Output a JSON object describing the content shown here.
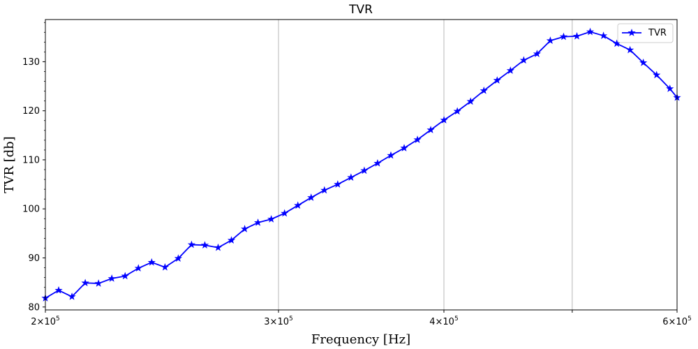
{
  "chart_data": {
    "type": "line",
    "title": "TVR",
    "xlabel": "Frequency [Hz]",
    "ylabel": "TVR [db]",
    "xscale": "log",
    "xlim": [
      200000,
      600000
    ],
    "ylim": [
      79.4,
      138.6
    ],
    "grid": "x-major",
    "legend_position": "top-right",
    "x_ticks": [
      {
        "value": 200000,
        "base": "2×10",
        "exp": "5"
      },
      {
        "value": 300000,
        "base": "3×10",
        "exp": "5"
      },
      {
        "value": 400000,
        "base": "4×10",
        "exp": "5"
      },
      {
        "value": 600000,
        "base": "6×10",
        "exp": "5"
      }
    ],
    "x_unlabeled_gridlines": [
      500000
    ],
    "y_ticks": [
      80,
      90,
      100,
      110,
      120,
      130
    ],
    "series": [
      {
        "name": "TVR",
        "color": "#0000ff",
        "marker": "star",
        "x": [
          200000,
          204680,
          209460,
          214360,
          219370,
          224500,
          229750,
          235120,
          240620,
          246250,
          252000,
          257890,
          263920,
          270090,
          276410,
          282870,
          289480,
          296250,
          303180,
          310270,
          317520,
          324940,
          332540,
          340310,
          348270,
          356410,
          364740,
          373270,
          381990,
          390920,
          400060,
          409420,
          418990,
          428780,
          438810,
          449070,
          459570,
          470310,
          481300,
          492560,
          504070,
          515860,
          527920,
          540260,
          552890,
          565810,
          579040,
          592580,
          600000
        ],
        "y": [
          81.8,
          83.4,
          82.1,
          84.9,
          84.8,
          85.8,
          86.3,
          87.9,
          89.1,
          88.1,
          89.9,
          92.7,
          92.6,
          92.1,
          93.6,
          95.9,
          97.2,
          97.9,
          99.1,
          100.7,
          102.3,
          103.8,
          105.0,
          106.4,
          107.8,
          109.3,
          110.9,
          112.4,
          114.1,
          116.1,
          118.1,
          119.9,
          121.9,
          124.1,
          126.2,
          128.2,
          130.3,
          131.6,
          134.3,
          135.1,
          135.2,
          136.1,
          135.3,
          133.7,
          132.4,
          129.8,
          127.3,
          124.5,
          122.7
        ]
      }
    ]
  }
}
